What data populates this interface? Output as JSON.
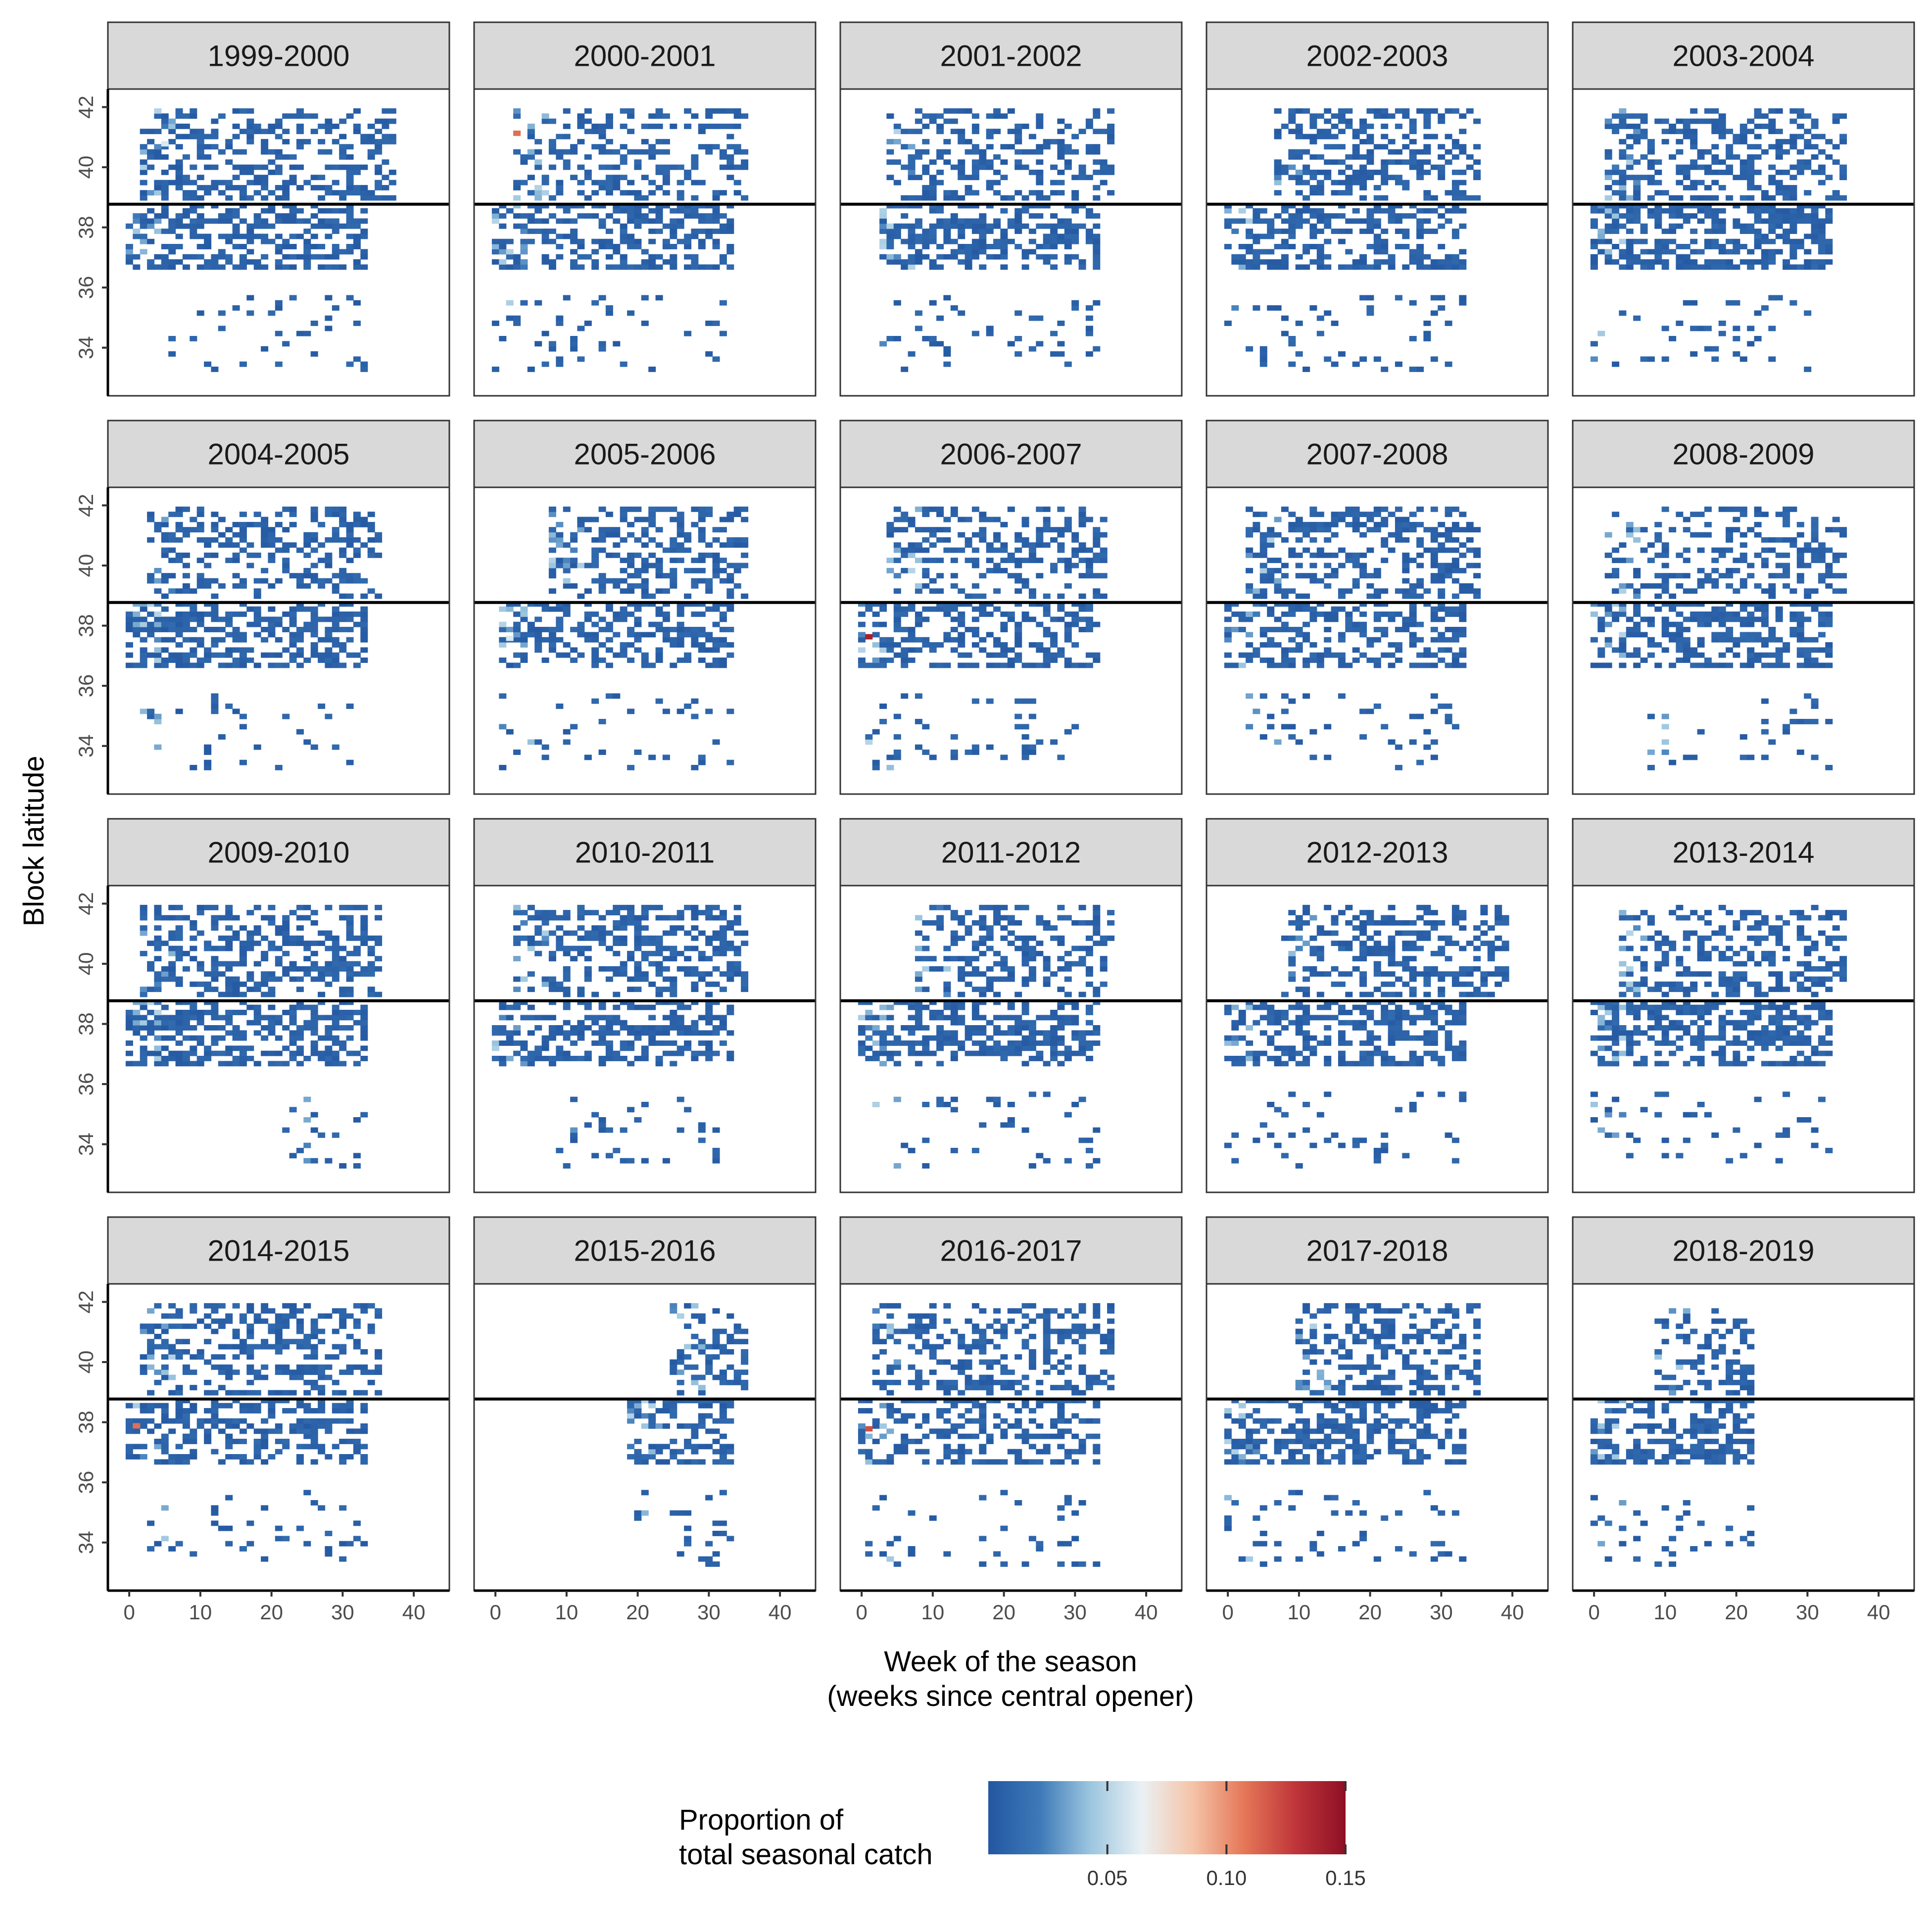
{
  "chart_data": {
    "type": "heatmap",
    "facet_variable": "season",
    "facets": [
      "1999-2000",
      "2000-2001",
      "2001-2002",
      "2002-2003",
      "2003-2004",
      "2004-2005",
      "2005-2006",
      "2006-2007",
      "2007-2008",
      "2008-2009",
      "2009-2010",
      "2010-2011",
      "2011-2012",
      "2012-2013",
      "2013-2014",
      "2014-2015",
      "2015-2016",
      "2016-2017",
      "2017-2018",
      "2018-2019"
    ],
    "xlabel": "Week of the season",
    "xlabel_sub": "(weeks since central opener)",
    "ylabel": "Block latitude",
    "xlim": [
      -3,
      45
    ],
    "ylim": [
      32.4,
      42.6
    ],
    "x_ticks": [
      0,
      10,
      20,
      30,
      40
    ],
    "y_ticks": [
      34,
      36,
      38,
      40,
      42
    ],
    "reference_line_latitude": 38.77,
    "legend": {
      "title_line1": "Proportion of",
      "title_line2": "total seasonal catch",
      "ticks": [
        0.05,
        0.1,
        0.15
      ],
      "tick_labels": [
        "0.05",
        "0.10",
        "0.15"
      ],
      "range": [
        0,
        0.15
      ],
      "placement": "bottom",
      "palette": [
        "#2357a1",
        "#3d79b8",
        "#9cc6df",
        "#eaf1f4",
        "#f5c4a9",
        "#e57858",
        "#c0363a",
        "#8e0f24"
      ]
    },
    "colors": {
      "base_cell": "#2458a2",
      "strip_fill": "#d9d9d9",
      "reference_line": "#000000"
    },
    "cell_size": {
      "weeks": 1,
      "latitude_deg": 0.17
    },
    "season_extents": [
      {
        "season": "1999-2000",
        "north": {
          "start": 2,
          "end": 37
        },
        "south": {
          "start": 0,
          "end": 33
        },
        "far_south": {
          "start": 6,
          "end": 33
        }
      },
      {
        "season": "2000-2001",
        "north": {
          "start": 3,
          "end": 35
        },
        "south": {
          "start": 0,
          "end": 33
        },
        "far_south": {
          "start": 0,
          "end": 32
        }
      },
      {
        "season": "2001-2002",
        "north": {
          "start": 4,
          "end": 35
        },
        "south": {
          "start": 3,
          "end": 33
        },
        "far_south": {
          "start": 3,
          "end": 33
        }
      },
      {
        "season": "2002-2003",
        "north": {
          "start": 7,
          "end": 35
        },
        "south": {
          "start": 0,
          "end": 33
        },
        "far_south": {
          "start": 0,
          "end": 33
        }
      },
      {
        "season": "2003-2004",
        "north": {
          "start": 2,
          "end": 35
        },
        "south": {
          "start": 0,
          "end": 33
        },
        "far_south": {
          "start": 0,
          "end": 30
        }
      },
      {
        "season": "2004-2005",
        "north": {
          "start": 3,
          "end": 35
        },
        "south": {
          "start": 0,
          "end": 33
        },
        "far_south": {
          "start": 1,
          "end": 32
        }
      },
      {
        "season": "2005-2006",
        "north": {
          "start": 8,
          "end": 35
        },
        "south": {
          "start": 1,
          "end": 33
        },
        "far_south": {
          "start": 1,
          "end": 33
        }
      },
      {
        "season": "2006-2007",
        "north": {
          "start": 4,
          "end": 34
        },
        "south": {
          "start": 0,
          "end": 33
        },
        "far_south": {
          "start": 0,
          "end": 33
        }
      },
      {
        "season": "2007-2008",
        "north": {
          "start": 3,
          "end": 35
        },
        "south": {
          "start": 0,
          "end": 33
        },
        "far_south": {
          "start": 3,
          "end": 33
        }
      },
      {
        "season": "2008-2009",
        "north": {
          "start": 2,
          "end": 35
        },
        "south": {
          "start": 0,
          "end": 33
        },
        "far_south": {
          "start": 8,
          "end": 33
        }
      },
      {
        "season": "2009-2010",
        "north": {
          "start": 2,
          "end": 35
        },
        "south": {
          "start": 0,
          "end": 33
        },
        "far_south": {
          "start": 22,
          "end": 33
        }
      },
      {
        "season": "2010-2011",
        "north": {
          "start": 3,
          "end": 35
        },
        "south": {
          "start": 0,
          "end": 33
        },
        "far_south": {
          "start": 8,
          "end": 33
        }
      },
      {
        "season": "2011-2012",
        "north": {
          "start": 8,
          "end": 35
        },
        "south": {
          "start": 0,
          "end": 33
        },
        "far_south": {
          "start": 2,
          "end": 33
        }
      },
      {
        "season": "2012-2013",
        "north": {
          "start": 8,
          "end": 39
        },
        "south": {
          "start": 0,
          "end": 33
        },
        "far_south": {
          "start": 0,
          "end": 33
        }
      },
      {
        "season": "2013-2014",
        "north": {
          "start": 4,
          "end": 35
        },
        "south": {
          "start": 0,
          "end": 33
        },
        "far_south": {
          "start": 0,
          "end": 33
        }
      },
      {
        "season": "2014-2015",
        "north": {
          "start": 2,
          "end": 35
        },
        "south": {
          "start": 0,
          "end": 33
        },
        "far_south": {
          "start": 2,
          "end": 33
        }
      },
      {
        "season": "2015-2016",
        "north": {
          "start": 25,
          "end": 35
        },
        "south": {
          "start": 19,
          "end": 33
        },
        "far_south": {
          "start": 19,
          "end": 33
        }
      },
      {
        "season": "2016-2017",
        "north": {
          "start": 2,
          "end": 35
        },
        "south": {
          "start": 0,
          "end": 33
        },
        "far_south": {
          "start": 0,
          "end": 33
        }
      },
      {
        "season": "2017-2018",
        "north": {
          "start": 10,
          "end": 35
        },
        "south": {
          "start": 0,
          "end": 33
        },
        "far_south": {
          "start": 0,
          "end": 33
        }
      },
      {
        "season": "2018-2019",
        "north": {
          "start": 9,
          "end": 22
        },
        "south": {
          "start": 0,
          "end": 22
        },
        "far_south": {
          "start": 0,
          "end": 22
        }
      }
    ],
    "notable_cells": [
      {
        "season": "2000-2001",
        "week": 3,
        "latitude": 41.05,
        "value": 0.11
      },
      {
        "season": "2006-2007",
        "week": 1,
        "latitude": 37.55,
        "value": 0.14
      },
      {
        "season": "2014-2015",
        "week": 1,
        "latitude": 37.8,
        "value": 0.11
      },
      {
        "season": "2016-2017",
        "week": 1,
        "latitude": 37.7,
        "value": 0.12
      },
      {
        "season": "1999-2000",
        "week": 5,
        "latitude": 40.7,
        "value": 0.06
      },
      {
        "season": "2005-2006",
        "week": 2,
        "latitude": 37.5,
        "value": 0.06
      }
    ]
  }
}
